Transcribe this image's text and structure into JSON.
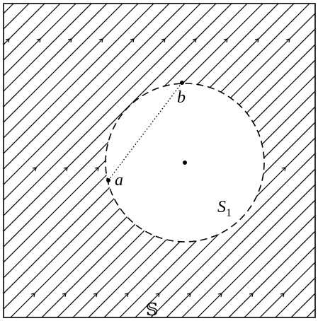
{
  "points": {
    "a": "a",
    "b": "b"
  },
  "region": {
    "base": "S",
    "sub": "1"
  },
  "space": "𝕊"
}
